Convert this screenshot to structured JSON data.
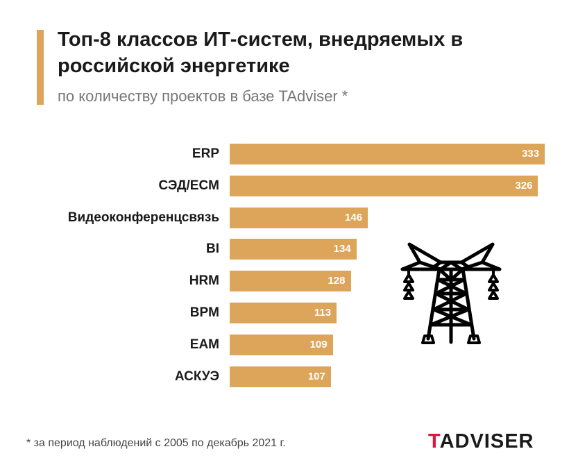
{
  "chart_data": {
    "type": "bar",
    "orientation": "horizontal",
    "title": "Топ-8 классов ИТ-систем, внедряемых в российской энергетике",
    "subtitle": "по количеству проектов в базе TAdviser *",
    "categories": [
      "ERP",
      "СЭД/ECM",
      "Видеоконференцсвязь",
      "BI",
      "HRM",
      "BPM",
      "EAM",
      "АСКУЭ"
    ],
    "values": [
      333,
      326,
      146,
      134,
      128,
      113,
      109,
      107
    ],
    "xlim": [
      0,
      333
    ],
    "bar_color": "#DDA55A",
    "footnote": "* за период наблюдений с 2005 по декабрь 2021 г."
  },
  "logo": {
    "first": "T",
    "rest": "ADVISER",
    "accent_color": "#E0143C"
  },
  "icon": "power-transmission-tower-icon"
}
